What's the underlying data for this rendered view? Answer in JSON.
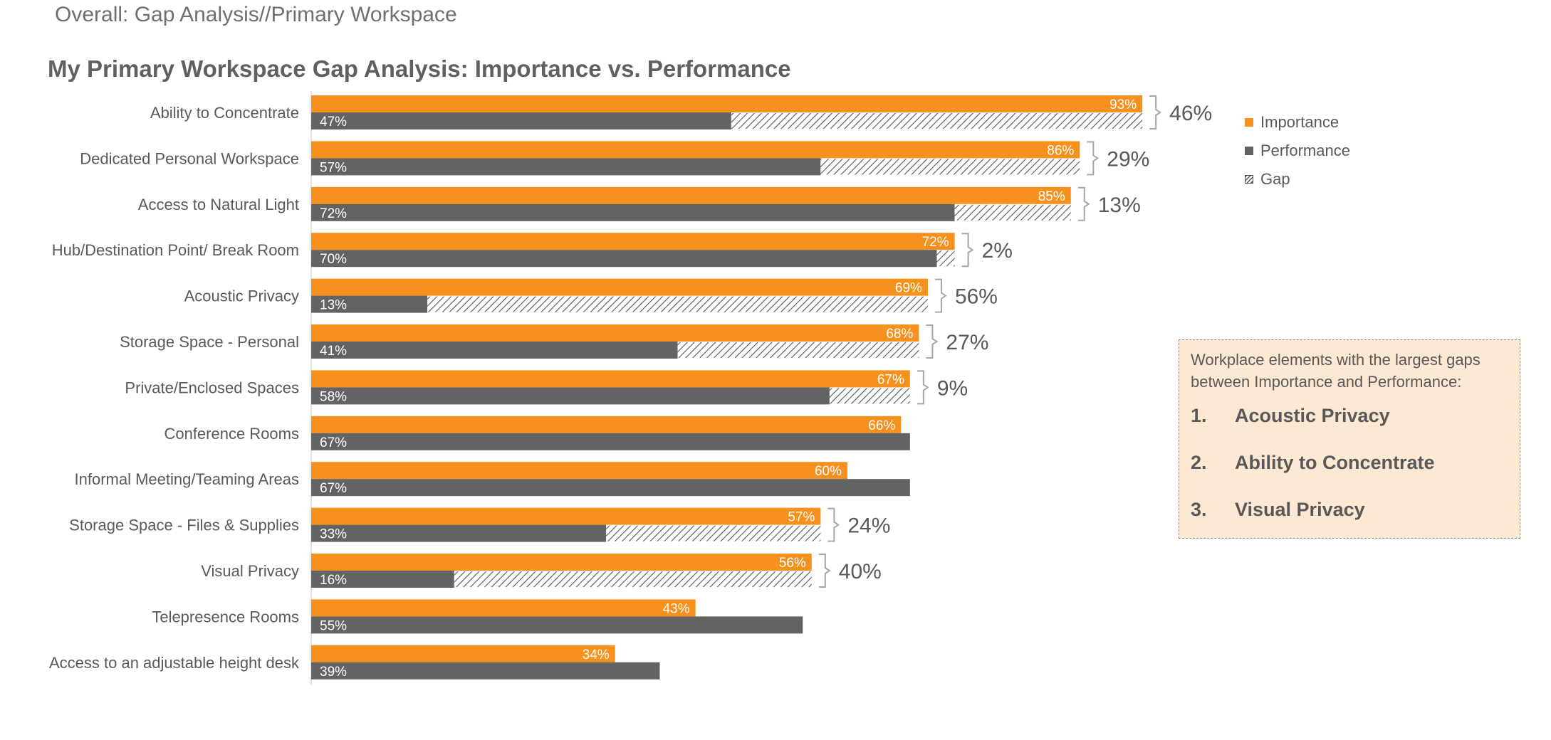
{
  "page": {
    "header": "Overall: Gap Analysis//Primary Workspace"
  },
  "colors": {
    "importance": "#f7911e",
    "performance": "#636363",
    "gap_stroke": "#555555",
    "bracket": "#a6a6a6",
    "label_text": "#595959",
    "callout_bg": "#fde9d3"
  },
  "legend": {
    "items": [
      {
        "label": "Importance",
        "icon": "orange-square"
      },
      {
        "label": "Performance",
        "icon": "gray-square"
      },
      {
        "label": "Gap",
        "icon": "hatched-square"
      }
    ]
  },
  "callout": {
    "intro": "Workplace elements with the largest gaps between Importance and Performance:",
    "items": [
      {
        "num": "1.",
        "label": "Acoustic Privacy"
      },
      {
        "num": "2.",
        "label": "Ability to Concentrate"
      },
      {
        "num": "3.",
        "label": "Visual Privacy"
      }
    ]
  },
  "chart_data": {
    "type": "bar",
    "orientation": "horizontal",
    "title": "My Primary Workspace Gap Analysis: Importance vs. Performance",
    "xlabel": "",
    "ylabel": "",
    "xlim": [
      0,
      100
    ],
    "grid": false,
    "legend_position": "right",
    "categories": [
      "Ability to Concentrate",
      "Dedicated Personal Workspace",
      "Access to Natural Light",
      "Hub/Destination Point/ Break Room",
      "Acoustic Privacy",
      "Storage Space - Personal",
      "Private/Enclosed Spaces",
      "Conference Rooms",
      "Informal Meeting/Teaming Areas",
      "Storage Space - Files & Supplies",
      "Visual Privacy",
      "Telepresence Rooms",
      "Access to an adjustable height desk"
    ],
    "series": [
      {
        "name": "Importance",
        "values": [
          93,
          86,
          85,
          72,
          69,
          68,
          67,
          66,
          60,
          57,
          56,
          43,
          34
        ]
      },
      {
        "name": "Performance",
        "values": [
          47,
          57,
          72,
          70,
          13,
          41,
          58,
          67,
          67,
          33,
          16,
          55,
          39
        ]
      },
      {
        "name": "Gap",
        "values": [
          46,
          29,
          13,
          2,
          56,
          27,
          9,
          null,
          null,
          24,
          40,
          null,
          null
        ]
      }
    ],
    "importance_labels": [
      "93%",
      "86%",
      "85%",
      "72%",
      "69%",
      "68%",
      "67%",
      "66%",
      "60%",
      "57%",
      "56%",
      "43%",
      "34%"
    ],
    "performance_labels": [
      "47%",
      "57%",
      "72%",
      "70%",
      "13%",
      "41%",
      "58%",
      "67%",
      "67%",
      "33%",
      "16%",
      "55%",
      "39%"
    ],
    "gap_labels": [
      "46%",
      "29%",
      "13%",
      "2%",
      "56%",
      "27%",
      "9%",
      null,
      null,
      "24%",
      "40%",
      null,
      null
    ]
  }
}
